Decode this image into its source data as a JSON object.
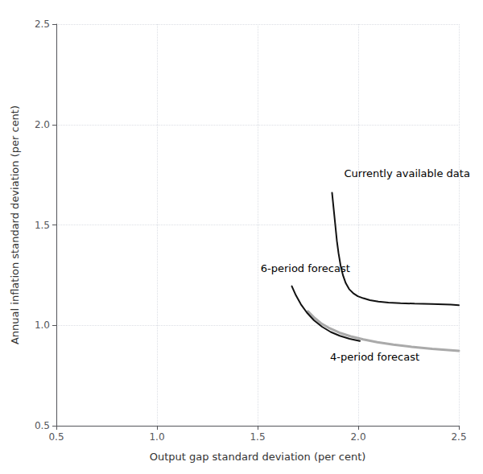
{
  "chart_data": {
    "type": "line",
    "xlabel": "Output gap standard deviation (per cent)",
    "ylabel": "Annual inflation standard deviation (per cent)",
    "xlim": [
      0.5,
      2.5
    ],
    "ylim": [
      0.5,
      2.5
    ],
    "xticks": [
      0.5,
      {
        "value": 1.0,
        "label": "1.0"
      },
      1.5,
      {
        "value": 2.0,
        "label": "2.0"
      },
      2.5
    ],
    "yticks": [
      0.5,
      {
        "value": 1.0,
        "label": "1.0"
      },
      1.5,
      {
        "value": 2.0,
        "label": "2.0"
      },
      2.5
    ],
    "grid": true,
    "series": [
      {
        "name": "4-period forecast",
        "color": "#aaaaaa",
        "x": [
          1.75,
          1.78,
          1.815,
          1.858,
          1.907,
          1.963,
          2.025,
          2.095,
          2.175,
          2.265,
          2.368,
          2.5
        ],
        "values": [
          1.07,
          1.04,
          1.01,
          0.985,
          0.963,
          0.945,
          0.93,
          0.916,
          0.904,
          0.893,
          0.883,
          0.873
        ]
      },
      {
        "name": "Currently available data",
        "color": "#111111",
        "x": [
          1.87,
          1.876,
          1.882,
          1.888,
          1.894,
          1.902,
          1.912,
          1.924,
          1.938,
          1.955,
          1.975,
          1.998,
          2.025,
          2.058,
          2.1,
          2.15,
          2.21,
          2.28,
          2.365,
          2.46,
          2.5
        ],
        "values": [
          1.66,
          1.6,
          1.54,
          1.48,
          1.42,
          1.36,
          1.3,
          1.25,
          1.21,
          1.18,
          1.16,
          1.145,
          1.135,
          1.125,
          1.118,
          1.113,
          1.11,
          1.108,
          1.106,
          1.103,
          1.1
        ]
      },
      {
        "name": "6-period forecast",
        "color": "#111111",
        "x": [
          1.67,
          1.69,
          1.715,
          1.745,
          1.78,
          1.82,
          1.863,
          1.908,
          1.957,
          2.008
        ],
        "values": [
          1.195,
          1.15,
          1.105,
          1.063,
          1.025,
          0.993,
          0.967,
          0.948,
          0.933,
          0.922
        ]
      }
    ],
    "annotations": [
      {
        "text": "Currently available data",
        "x": 1.93,
        "y": 1.73
      },
      {
        "text": "6-period forecast",
        "x": 1.515,
        "y": 1.285
      },
      {
        "text": "4-period forecast",
        "x": 1.86,
        "y": 0.87
      }
    ]
  }
}
